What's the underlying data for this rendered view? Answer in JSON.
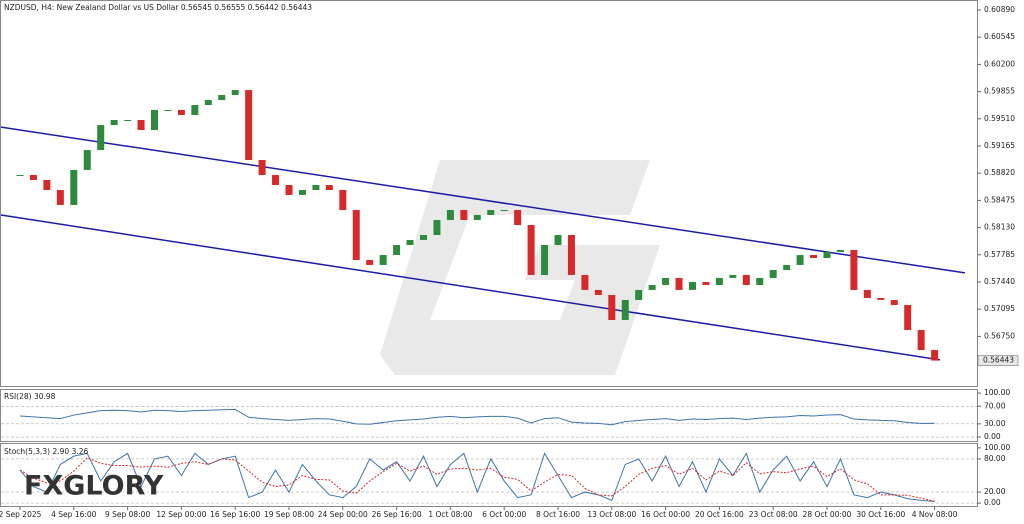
{
  "chart_data": [
    {
      "type": "candlestick",
      "title": "NZDUSD, H4:  New Zealand Dollar vs US Dollar  0.56545 0.56555 0.56442 0.56443",
      "categories": [
        "2 Sep 2025",
        null,
        null,
        null,
        "4 Sep 16:00",
        null,
        null,
        null,
        "9 Sep 08:00",
        null,
        null,
        null,
        "12 Sep 00:00",
        null,
        null,
        null,
        "16 Sep 16:00",
        null,
        null,
        null,
        "19 Sep 08:00",
        null,
        null,
        null,
        "24 Sep 00:00",
        null,
        null,
        null,
        "26 Sep 16:00",
        null,
        null,
        null,
        "1 Oct 08:00",
        null,
        null,
        null,
        "6 Oct 00:00",
        null,
        null,
        null,
        "8 Oct 16:00",
        null,
        null,
        null,
        "13 Oct 08:00",
        null,
        null,
        null,
        "16 Oct 00:00",
        null,
        null,
        null,
        "20 Oct 16:00",
        null,
        null,
        null,
        "23 Oct 08:00",
        null,
        null,
        null,
        "28 Oct 00:00",
        null,
        null,
        null,
        "30 Oct 16:00",
        null,
        null,
        null,
        "4 Nov 08:00"
      ],
      "close": [
        0.58797,
        0.58734,
        0.58607,
        0.58417,
        0.58861,
        0.59114,
        0.59431,
        0.59495,
        0.59495,
        0.59368,
        0.59622,
        0.59622,
        0.59558,
        0.59685,
        0.59748,
        0.59812,
        0.59875,
        0.58987,
        0.58797,
        0.5867,
        0.58544,
        0.58607,
        0.5867,
        0.58607,
        0.58353,
        0.57719,
        0.57656,
        0.57782,
        0.57909,
        0.57973,
        0.58036,
        0.58226,
        0.58353,
        0.58226,
        0.5829,
        0.58353,
        0.58353,
        0.58163,
        0.57529,
        0.57909,
        0.58036,
        0.57529,
        0.57339,
        0.57275,
        0.56958,
        0.57212,
        0.57339,
        0.57402,
        0.57491,
        0.57339,
        0.5744,
        0.57402,
        0.57491,
        0.57529,
        0.57402,
        0.57491,
        0.57592,
        0.57656,
        0.57782,
        0.57744,
        0.57821,
        0.57846,
        0.57339,
        0.57237,
        0.57212,
        0.57148,
        0.56831,
        0.56577,
        0.56443
      ],
      "channel": {
        "upper": [
          0.59368,
          0.57614
        ],
        "lower": [
          0.58252,
          0.56463
        ]
      },
      "up_color": "#2e8b3e",
      "down_color": "#d62a2a",
      "channel_color": "#1c1ca8",
      "price_box_color": "#e8e8e8",
      "ylim": [
        0.56108,
        0.61017
      ],
      "yticks": [
        {
          "value": 0.6089,
          "label": "0.60890"
        },
        {
          "value": 0.60545,
          "label": "0.60545"
        },
        {
          "value": 0.602,
          "label": "0.60200"
        },
        {
          "value": 0.59855,
          "label": "0.59855"
        },
        {
          "value": 0.5951,
          "label": "0.59510"
        },
        {
          "value": 0.59165,
          "label": "0.59165"
        },
        {
          "value": 0.5882,
          "label": "0.58820"
        },
        {
          "value": 0.58475,
          "label": "0.58475"
        },
        {
          "value": 0.5813,
          "label": "0.58130"
        },
        {
          "value": 0.57785,
          "label": "0.57785"
        },
        {
          "value": 0.5744,
          "label": "0.57440"
        },
        {
          "value": 0.57095,
          "label": "0.57095"
        },
        {
          "value": 0.5675,
          "label": "0.56750"
        }
      ]
    },
    {
      "type": "line",
      "title": "RSI(28) 30.98",
      "color": "#3f74aa",
      "values": [
        48,
        46,
        44,
        42,
        50,
        55,
        60,
        61,
        60,
        57,
        61,
        60,
        58,
        60,
        61,
        62,
        63,
        45,
        42,
        40,
        38,
        40,
        42,
        41,
        36,
        30,
        29,
        33,
        37,
        39,
        41,
        45,
        47,
        44,
        46,
        47,
        47,
        43,
        32,
        42,
        44,
        34,
        32,
        31,
        28,
        35,
        38,
        40,
        42,
        38,
        41,
        40,
        42,
        43,
        40,
        43,
        45,
        46,
        49,
        48,
        50,
        51,
        41,
        39,
        38,
        37,
        33,
        31,
        30.98
      ],
      "ylim": [
        -9,
        107
      ],
      "yticks": [
        {
          "value": 100,
          "label": "100.00"
        },
        {
          "value": 70,
          "label": "70.00"
        },
        {
          "value": 30,
          "label": "30.00"
        },
        {
          "value": 0,
          "label": "0.00"
        }
      ]
    },
    {
      "type": "line",
      "title": "Stoch(5,3,3) 2.90 3.26",
      "series": [
        {
          "color": "#3f74aa",
          "values": [
            60,
            30,
            20,
            70,
            85,
            90,
            40,
            75,
            90,
            30,
            80,
            85,
            50,
            90,
            70,
            80,
            85,
            10,
            20,
            60,
            20,
            70,
            40,
            15,
            10,
            30,
            80,
            60,
            75,
            40,
            85,
            30,
            70,
            90,
            20,
            80,
            40,
            10,
            15,
            90,
            50,
            10,
            20,
            15,
            5,
            70,
            80,
            40,
            85,
            30,
            75,
            20,
            80,
            50,
            90,
            20,
            60,
            85,
            40,
            75,
            30,
            80,
            15,
            10,
            20,
            15,
            8,
            5,
            2.9
          ]
        },
        {
          "color": "#d62a2a",
          "dashed": true,
          "values": [
            60,
            45,
            37,
            40,
            58,
            82,
            72,
            68,
            68,
            65,
            67,
            65,
            72,
            75,
            70,
            80,
            78,
            58,
            38,
            30,
            33,
            50,
            43,
            42,
            22,
            18,
            40,
            57,
            72,
            58,
            67,
            52,
            62,
            63,
            60,
            63,
            47,
            43,
            22,
            38,
            52,
            50,
            27,
            15,
            13,
            30,
            52,
            63,
            68,
            52,
            63,
            42,
            58,
            50,
            73,
            53,
            57,
            55,
            62,
            67,
            48,
            62,
            42,
            35,
            15,
            15,
            14,
            9,
            3.26
          ]
        }
      ],
      "ylim": [
        -7,
        107
      ],
      "yticks": [
        {
          "value": 100,
          "label": "100.00"
        },
        {
          "value": 80,
          "label": "80.00"
        },
        {
          "value": 20,
          "label": "20.00"
        },
        {
          "value": 0,
          "label": "0.00"
        }
      ]
    }
  ],
  "watermark": "FXGLORY"
}
